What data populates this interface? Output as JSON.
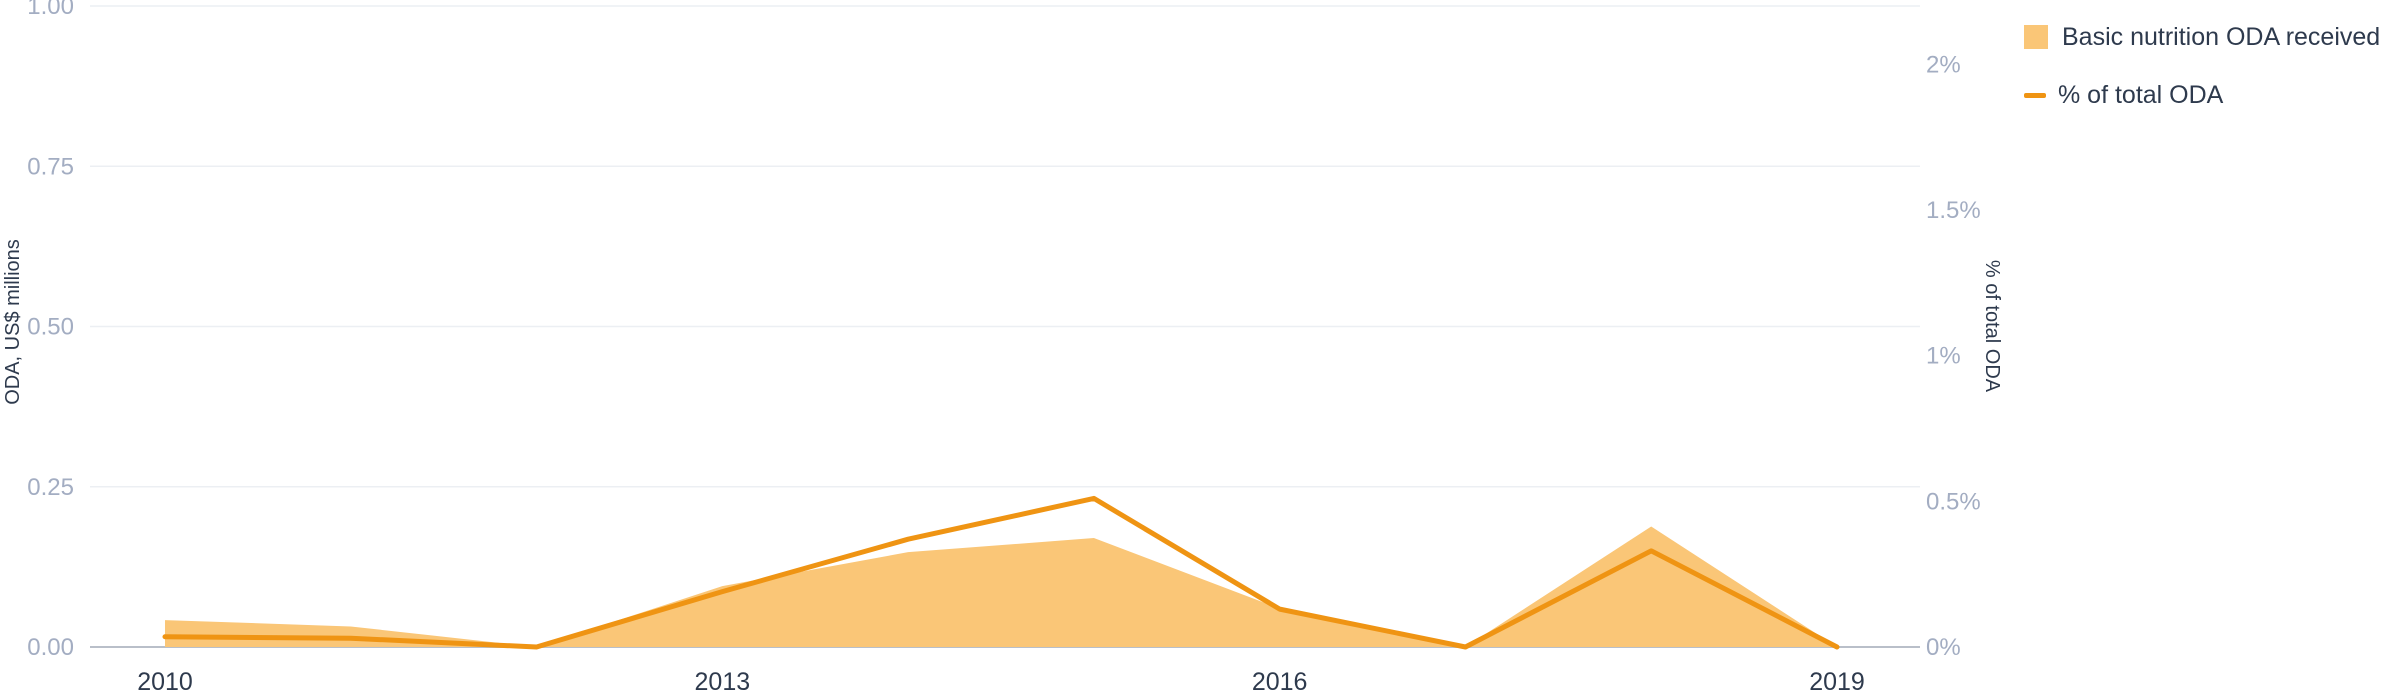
{
  "chart_data": {
    "type": "area",
    "x": [
      2010,
      2011,
      2012,
      2013,
      2014,
      2015,
      2016,
      2017,
      2018,
      2019
    ],
    "x_ticks": [
      "2010",
      "2013",
      "2016",
      "2019"
    ],
    "series": [
      {
        "name": "Basic nutrition ODA received",
        "type": "area",
        "axis": "left",
        "color": "#fac677",
        "values": [
          0.042,
          0.032,
          0.0,
          0.095,
          0.148,
          0.17,
          0.06,
          0.0,
          0.188,
          0.0
        ]
      },
      {
        "name": "% of total ODA",
        "type": "line",
        "axis": "right",
        "color": "#ef9413",
        "values": [
          0.035,
          0.03,
          0.0,
          0.19,
          0.37,
          0.51,
          0.13,
          0.0,
          0.33,
          0.0
        ]
      }
    ],
    "y_left": {
      "label": "ODA, US$ millions",
      "range": [
        0,
        1.0
      ],
      "ticks": [
        "0.00",
        "0.25",
        "0.50",
        "0.75",
        "1.00"
      ]
    },
    "y_right": {
      "label": "% of total ODA",
      "range": [
        0,
        2.2
      ],
      "ticks": [
        "0%",
        "0.5%",
        "1%",
        "1.5%",
        "2%"
      ]
    },
    "grid": true,
    "legend_position": "top-right"
  },
  "legend": {
    "items": [
      {
        "label": "Basic nutrition ODA received"
      },
      {
        "label": "% of total ODA"
      }
    ]
  }
}
